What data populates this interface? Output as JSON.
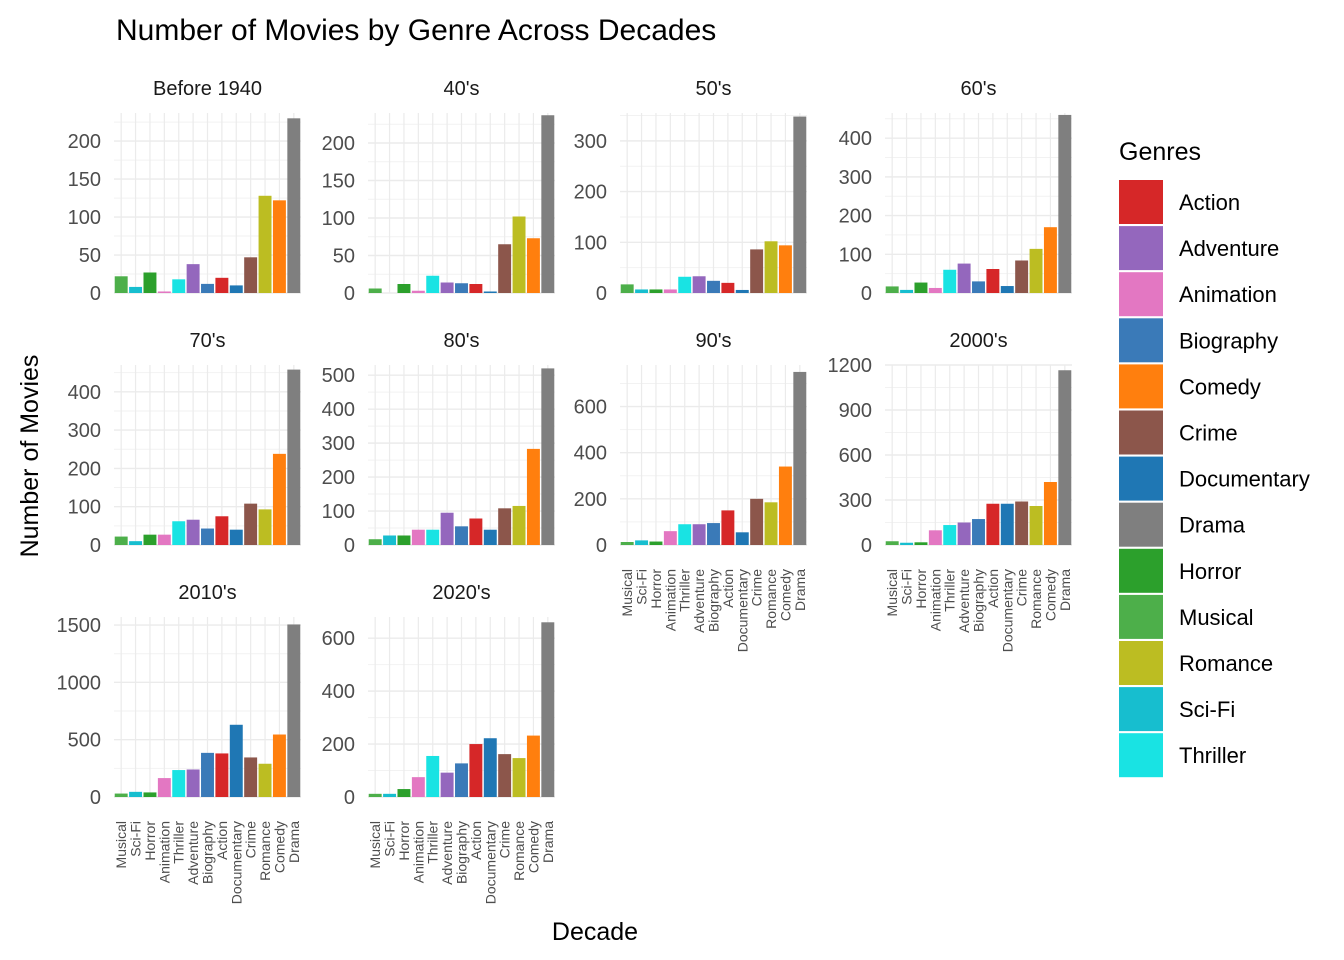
{
  "chart_data": {
    "type": "bar",
    "title": "Number of Movies by Genre Across Decades",
    "xlabel": "Decade",
    "ylabel": "Number of Movies",
    "legend": {
      "title": "Genres",
      "position": "right",
      "entries": [
        "Action",
        "Adventure",
        "Animation",
        "Biography",
        "Comedy",
        "Crime",
        "Documentary",
        "Drama",
        "Horror",
        "Musical",
        "Romance",
        "Sci-Fi",
        "Thriller"
      ]
    },
    "colors": {
      "Action": "#d62728",
      "Adventure": "#9467bd",
      "Animation": "#e377c2",
      "Biography": "#3a7ab8",
      "Comedy": "#ff7f0e",
      "Crime": "#8c564b",
      "Documentary": "#1f77b4",
      "Drama": "#7f7f7f",
      "Horror": "#2ca02c",
      "Musical": "#4daf4a",
      "Romance": "#bcbd22",
      "Sci-Fi": "#17becf",
      "Thriller": "#19e3e3"
    },
    "categories": [
      "Musical",
      "Sci-Fi",
      "Horror",
      "Animation",
      "Thriller",
      "Adventure",
      "Biography",
      "Action",
      "Documentary",
      "Crime",
      "Romance",
      "Comedy",
      "Drama"
    ],
    "grid": true,
    "panels": [
      {
        "label": "Before 1940",
        "ylim": [
          0,
          237
        ],
        "yticks": [
          0,
          50,
          100,
          150,
          200
        ],
        "values": [
          22,
          8,
          27,
          2,
          18,
          38,
          12,
          20,
          10,
          47,
          128,
          122,
          230
        ]
      },
      {
        "label": "40's",
        "ylim": [
          0,
          240
        ],
        "yticks": [
          0,
          50,
          100,
          150,
          200
        ],
        "values": [
          6,
          0,
          12,
          3,
          23,
          14,
          13,
          12,
          2,
          65,
          102,
          73,
          237
        ]
      },
      {
        "label": "50's",
        "ylim": [
          0,
          355
        ],
        "yticks": [
          0,
          100,
          200,
          300
        ],
        "values": [
          17,
          7,
          7,
          7,
          32,
          33,
          24,
          20,
          6,
          86,
          102,
          94,
          348
        ]
      },
      {
        "label": "60's",
        "ylim": [
          0,
          465
        ],
        "yticks": [
          0,
          100,
          200,
          300,
          400
        ],
        "values": [
          17,
          8,
          27,
          13,
          60,
          76,
          30,
          62,
          18,
          84,
          114,
          170,
          460
        ]
      },
      {
        "label": "70's",
        "ylim": [
          0,
          470
        ],
        "yticks": [
          0,
          100,
          200,
          300,
          400
        ],
        "values": [
          22,
          10,
          27,
          27,
          62,
          66,
          43,
          75,
          40,
          108,
          93,
          238,
          458
        ]
      },
      {
        "label": "80's",
        "ylim": [
          0,
          530
        ],
        "yticks": [
          0,
          100,
          200,
          300,
          400,
          500
        ],
        "values": [
          17,
          28,
          28,
          45,
          45,
          95,
          55,
          78,
          45,
          108,
          115,
          283,
          520
        ]
      },
      {
        "label": "90's",
        "ylim": [
          0,
          780
        ],
        "yticks": [
          0,
          200,
          400,
          600
        ],
        "values": [
          13,
          20,
          15,
          60,
          90,
          90,
          95,
          150,
          55,
          200,
          185,
          340,
          750
        ]
      },
      {
        "label": "2000's",
        "ylim": [
          0,
          1200
        ],
        "yticks": [
          0,
          300,
          600,
          900,
          1200
        ],
        "values": [
          25,
          15,
          18,
          98,
          133,
          150,
          173,
          275,
          275,
          290,
          260,
          420,
          1165
        ]
      },
      {
        "label": "2010's",
        "ylim": [
          0,
          1570
        ],
        "yticks": [
          0,
          500,
          1000,
          1500
        ],
        "values": [
          30,
          45,
          40,
          165,
          235,
          240,
          385,
          380,
          630,
          345,
          290,
          545,
          1505
        ]
      },
      {
        "label": "2020's",
        "ylim": [
          0,
          680
        ],
        "yticks": [
          0,
          200,
          400,
          600
        ],
        "values": [
          12,
          12,
          30,
          75,
          155,
          92,
          127,
          200,
          222,
          162,
          147,
          232,
          660
        ]
      }
    ]
  }
}
